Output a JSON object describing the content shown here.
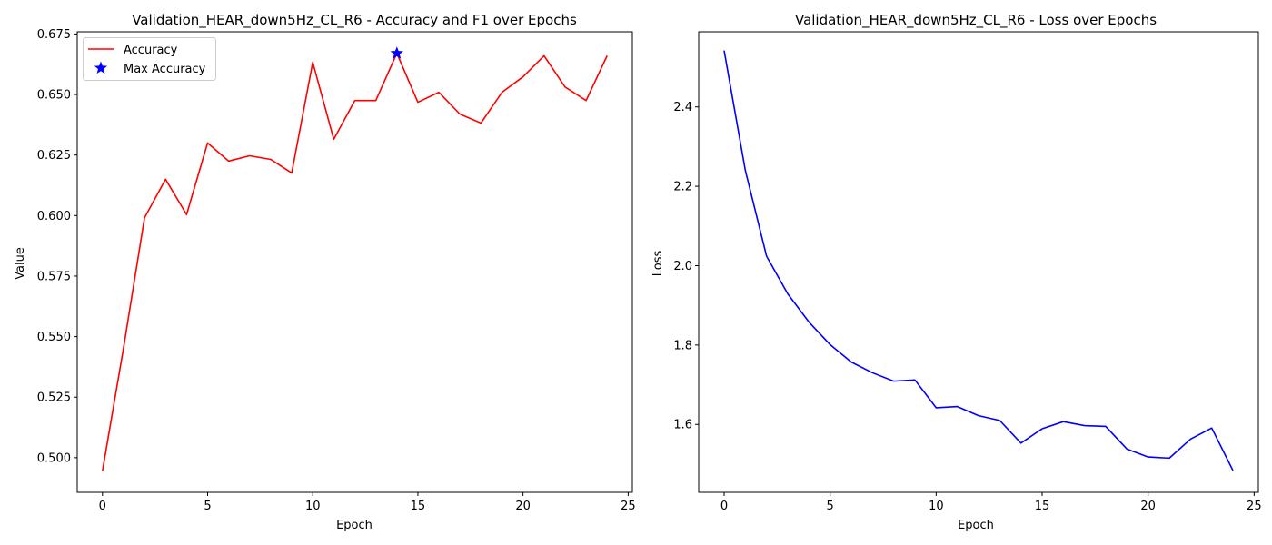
{
  "chart_data": [
    {
      "type": "line",
      "title": "Validation_HEAR_down5Hz_CL_R6 - Accuracy and F1 over Epochs",
      "xlabel": "Epoch",
      "ylabel": "Value",
      "xlim": [
        -1.2,
        25.2
      ],
      "ylim": [
        0.4857,
        0.6759
      ],
      "xticks": [
        0,
        5,
        10,
        15,
        20,
        25
      ],
      "yticks": [
        0.5,
        0.525,
        0.55,
        0.575,
        0.6,
        0.625,
        0.65,
        0.675
      ],
      "ytick_labels": [
        "0.500",
        "0.525",
        "0.550",
        "0.575",
        "0.600",
        "0.625",
        "0.650",
        "0.675"
      ],
      "legend_position": "top-left",
      "x": [
        0,
        1,
        2,
        3,
        4,
        5,
        6,
        7,
        8,
        9,
        10,
        11,
        12,
        13,
        14,
        15,
        16,
        17,
        18,
        19,
        20,
        21,
        22,
        23,
        24
      ],
      "series": [
        {
          "name": "Accuracy",
          "color": "#ff0000",
          "values": [
            0.4945,
            0.5452,
            0.5991,
            0.615,
            0.6004,
            0.63,
            0.6225,
            0.6247,
            0.6232,
            0.6176,
            0.6633,
            0.6315,
            0.6475,
            0.6475,
            0.667,
            0.6468,
            0.6509,
            0.6419,
            0.6382,
            0.6509,
            0.6573,
            0.666,
            0.6531,
            0.6475,
            0.666
          ]
        }
      ],
      "markers": [
        {
          "name": "Max Accuracy",
          "x": 14,
          "y": 0.667,
          "color": "#0000ff",
          "symbol": "star"
        }
      ]
    },
    {
      "type": "line",
      "title": "Validation_HEAR_down5Hz_CL_R6 - Loss over Epochs",
      "xlabel": "Epoch",
      "ylabel": "Loss",
      "xlim": [
        -1.2,
        25.2
      ],
      "ylim": [
        1.4289,
        2.5893
      ],
      "xticks": [
        0,
        5,
        10,
        15,
        20,
        25
      ],
      "yticks": [
        1.6,
        1.8,
        2.0,
        2.2,
        2.4
      ],
      "ytick_labels": [
        "1.6",
        "1.8",
        "2.0",
        "2.2",
        "2.4"
      ],
      "x": [
        0,
        1,
        2,
        3,
        4,
        5,
        6,
        7,
        8,
        9,
        10,
        11,
        12,
        13,
        14,
        15,
        16,
        17,
        18,
        19,
        20,
        21,
        22,
        23,
        24
      ],
      "series": [
        {
          "color": "#0000ff",
          "values": [
            2.542,
            2.24,
            2.024,
            1.929,
            1.858,
            1.801,
            1.757,
            1.73,
            1.709,
            1.712,
            1.642,
            1.645,
            1.622,
            1.61,
            1.553,
            1.589,
            1.607,
            1.597,
            1.595,
            1.538,
            1.518,
            1.515,
            1.563,
            1.591,
            1.484
          ]
        }
      ]
    }
  ]
}
